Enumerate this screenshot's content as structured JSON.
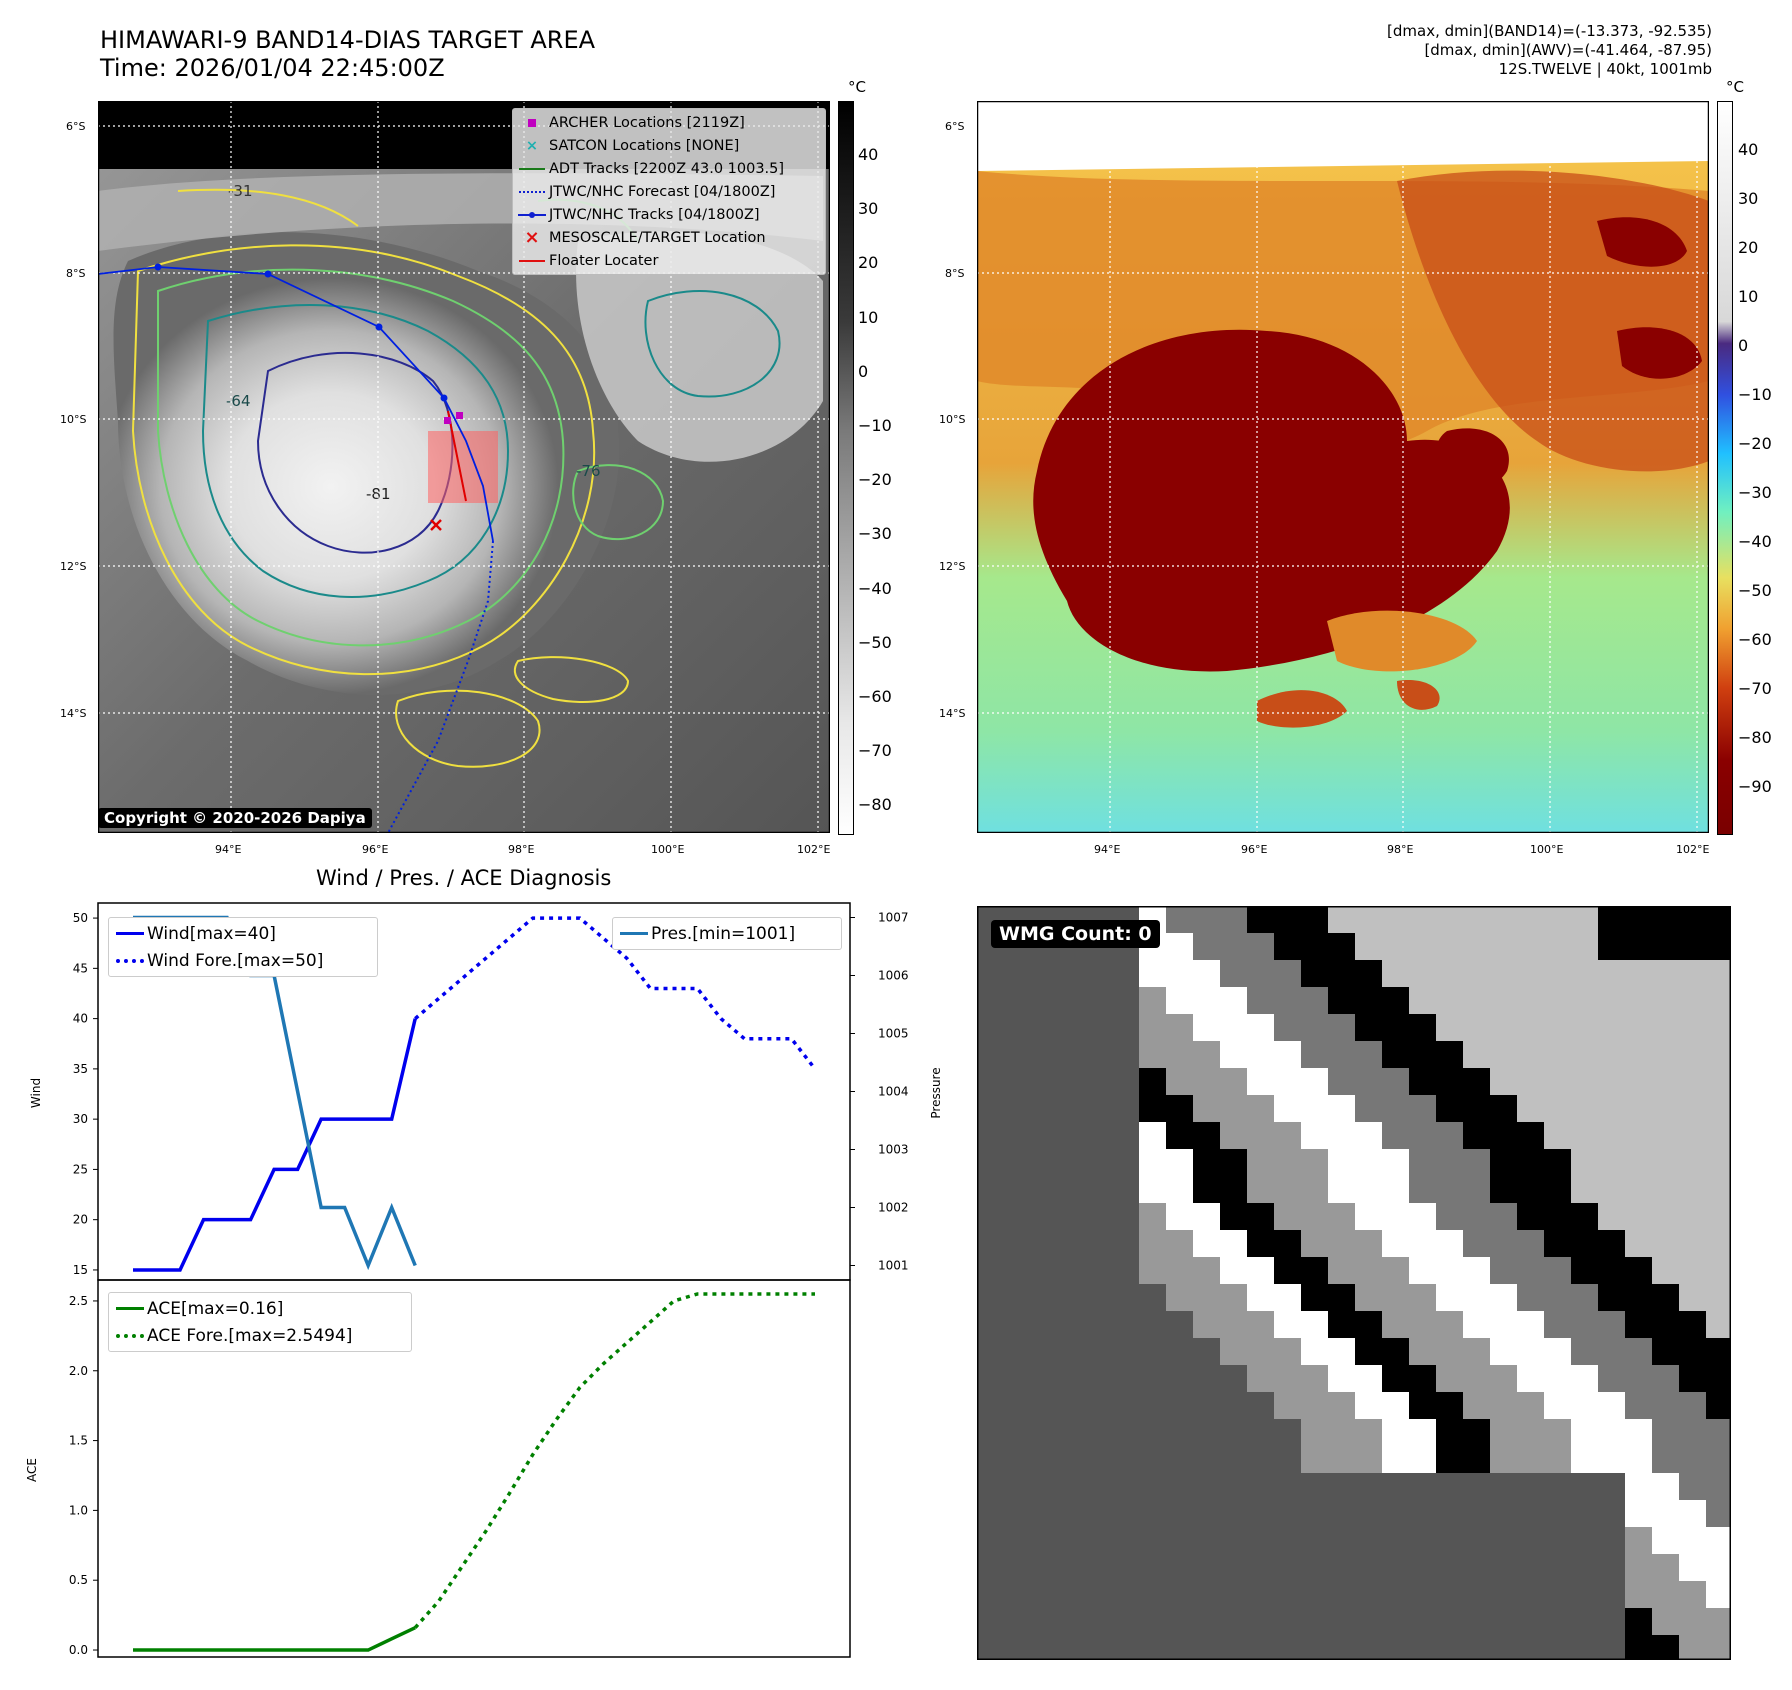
{
  "header": {
    "title_line1": "HIMAWARI-9 BAND14-DIAS TARGET AREA",
    "title_line2": "Time: 2026/01/04 22:45:00Z",
    "info_line1": "[dmax, dmin](BAND14)=(-13.373, -92.535)",
    "info_line2": "[dmax, dmin](AWV)=(-41.464, -87.95)",
    "info_line3": "12S.TWELVE | 40kt, 1001mb"
  },
  "map": {
    "lat_labels": [
      "6°S",
      "8°S",
      "10°S",
      "12°S",
      "14°S"
    ],
    "lon_labels": [
      "94°E",
      "96°E",
      "98°E",
      "100°E",
      "102°E"
    ],
    "copyright": "Copyright © 2020-2026 Dapiya",
    "contour_labels": [
      "-31",
      "-64",
      "-76",
      "-81"
    ],
    "legend": [
      {
        "label": "ARCHER Locations [2119Z]",
        "color": "#c000c0",
        "symbol": "square-icon"
      },
      {
        "label": "SATCON Locations [NONE]",
        "color": "#20b0b0",
        "symbol": "x-icon"
      },
      {
        "label": "ADT Tracks [2200Z 43.0 1003.5]",
        "color": "#1a7a1a",
        "symbol": "line-icon"
      },
      {
        "label": "JTWC/NHC Forecast [04/1800Z]",
        "color": "#1020d0",
        "symbol": "dotted-line-icon"
      },
      {
        "label": "JTWC/NHC Tracks [04/1800Z]",
        "color": "#1020d0",
        "symbol": "line-dot-icon"
      },
      {
        "label": "MESOSCALE/TARGET Location",
        "color": "#e01010",
        "symbol": "x-icon"
      },
      {
        "label": "Floater Locater",
        "color": "#e01010",
        "symbol": "line-icon"
      }
    ]
  },
  "colorbar_left": {
    "unit": "°C",
    "ticks": [
      "40",
      "30",
      "20",
      "10",
      "0",
      "−10",
      "−20",
      "−30",
      "−40",
      "−50",
      "−60",
      "−70",
      "−80"
    ]
  },
  "colorbar_right": {
    "unit": "°C",
    "ticks": [
      "40",
      "30",
      "20",
      "10",
      "0",
      "−10",
      "−20",
      "−30",
      "−40",
      "−50",
      "−60",
      "−70",
      "−80",
      "−90"
    ]
  },
  "diagnosis": {
    "title": "Wind / Pres. / ACE Diagnosis",
    "wind_ylabel": "Wind",
    "pres_ylabel": "Pressure",
    "ace_ylabel": "ACE",
    "wind_ticks": [
      "50",
      "45",
      "40",
      "35",
      "30",
      "25",
      "20",
      "15"
    ],
    "pres_ticks": [
      "1007",
      "1006",
      "1005",
      "1004",
      "1003",
      "1002",
      "1001"
    ],
    "ace_ticks": [
      "2.5",
      "2.0",
      "1.5",
      "1.0",
      "0.5",
      "0.0"
    ],
    "legend_wind": "Wind[max=40]",
    "legend_wind_fore": "Wind Fore.[max=50]",
    "legend_pres": "Pres.[min=1001]",
    "legend_ace": "ACE[max=0.16]",
    "legend_ace_fore": "ACE Fore.[max=2.5494]"
  },
  "chart_data": [
    {
      "type": "line",
      "title": "Wind / Pres. / ACE Diagnosis",
      "ylabel": "Wind",
      "ylim": [
        14,
        51.5
      ],
      "x": [
        0,
        1,
        2,
        3,
        4,
        5,
        6,
        7,
        8,
        9,
        10,
        11,
        12,
        13,
        14,
        15,
        16,
        17,
        18,
        19,
        20,
        21,
        22,
        23,
        24,
        25,
        26,
        27,
        28,
        29
      ],
      "series": [
        {
          "name": "Wind[max=40]",
          "color": "#0000ee",
          "style": "solid",
          "x": [
            0,
            1,
            2,
            3,
            4,
            5,
            6,
            7,
            8,
            9,
            10,
            11,
            12
          ],
          "values": [
            15,
            15,
            15,
            20,
            20,
            20,
            25,
            25,
            30,
            30,
            30,
            30,
            40
          ]
        },
        {
          "name": "Wind Fore.[max=50]",
          "color": "#0000ee",
          "style": "dotted",
          "x": [
            12,
            13,
            14,
            15,
            16,
            17,
            18,
            19,
            20,
            21,
            22,
            23,
            24,
            25,
            26,
            27,
            28,
            29
          ],
          "values": [
            40,
            42,
            44,
            46,
            48,
            50,
            50,
            50,
            48,
            46,
            43,
            43,
            43,
            40,
            38,
            38,
            38,
            35
          ]
        }
      ]
    },
    {
      "type": "line",
      "ylabel": "Pressure",
      "ylim": [
        1000.75,
        1007.25
      ],
      "series": [
        {
          "name": "Pres.[min=1001]",
          "color": "#1f77b4",
          "style": "solid",
          "x": [
            0,
            1,
            2,
            3,
            4,
            5,
            6,
            7,
            8,
            9,
            10,
            11,
            12
          ],
          "values": [
            1007,
            1007,
            1007,
            1007,
            1007,
            1006,
            1006,
            1004,
            1002,
            1002,
            1001,
            1002,
            1001
          ]
        }
      ]
    },
    {
      "type": "line",
      "ylabel": "ACE",
      "ylim": [
        -0.05,
        2.65
      ],
      "series": [
        {
          "name": "ACE[max=0.16]",
          "color": "#008000",
          "style": "solid",
          "x": [
            0,
            1,
            2,
            3,
            4,
            5,
            6,
            7,
            8,
            9,
            10,
            11,
            12
          ],
          "values": [
            0,
            0,
            0,
            0,
            0,
            0,
            0,
            0,
            0,
            0,
            0,
            0.08,
            0.16
          ]
        },
        {
          "name": "ACE Fore.[max=2.5494]",
          "color": "#008000",
          "style": "dotted",
          "x": [
            12,
            13,
            14,
            15,
            16,
            17,
            18,
            19,
            20,
            21,
            22,
            23,
            24,
            25,
            26,
            27,
            28,
            29
          ],
          "values": [
            0.16,
            0.35,
            0.6,
            0.85,
            1.12,
            1.4,
            1.65,
            1.88,
            2.05,
            2.2,
            2.35,
            2.5,
            2.55,
            2.55,
            2.55,
            2.55,
            2.55,
            2.55
          ]
        }
      ]
    }
  ],
  "wmg": {
    "label": "WMG Count: 0"
  }
}
